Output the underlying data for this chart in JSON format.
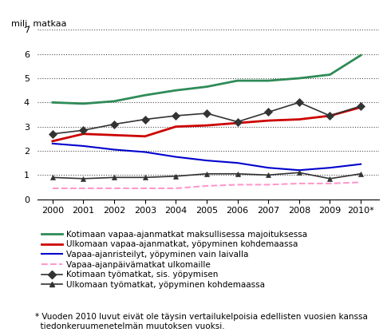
{
  "years": [
    2000,
    2001,
    2002,
    2003,
    2004,
    2005,
    2006,
    2007,
    2008,
    2009,
    2010
  ],
  "year_labels": [
    "2000",
    "2001",
    "2002",
    "2003",
    "2004",
    "2005",
    "2006",
    "2007",
    "2008",
    "2009",
    "2010*"
  ],
  "series": [
    {
      "key": "kotimaa_vapaa",
      "label": "Kotimaan vapaa-ajanmatkat maksullisessa majoituksessa",
      "color": "#2e8b57",
      "linewidth": 2.0,
      "linestyle": "-",
      "marker": null,
      "markersize": null,
      "values": [
        4.0,
        3.95,
        4.05,
        4.3,
        4.5,
        4.65,
        4.9,
        4.9,
        5.0,
        5.15,
        5.95
      ]
    },
    {
      "key": "ulkomaa_vapaa",
      "label": "Ulkomaan vapaa-ajanmatkat, yöpyminen kohdemaassa",
      "color": "#cc0000",
      "linewidth": 2.0,
      "linestyle": "-",
      "marker": null,
      "markersize": null,
      "values": [
        2.4,
        2.7,
        2.65,
        2.6,
        3.0,
        3.05,
        3.15,
        3.25,
        3.3,
        3.45,
        3.8
      ]
    },
    {
      "key": "risteilyt",
      "label": "Vapaa-ajanristeilyt, yöpyminen vain laivalla",
      "color": "#0000cc",
      "linewidth": 1.5,
      "linestyle": "-",
      "marker": null,
      "markersize": null,
      "values": [
        2.3,
        2.2,
        2.05,
        1.95,
        1.75,
        1.6,
        1.5,
        1.3,
        1.2,
        1.3,
        1.45
      ]
    },
    {
      "key": "paivamatkat",
      "label": "Vapaa-ajanpäivämatkat ulkomaille",
      "color": "#ff99cc",
      "linewidth": 1.5,
      "linestyle": "--",
      "marker": null,
      "markersize": null,
      "values": [
        0.45,
        0.45,
        0.45,
        0.45,
        0.45,
        0.55,
        0.6,
        0.6,
        0.65,
        0.65,
        0.7
      ]
    },
    {
      "key": "kotimaa_tyo",
      "label": "Kotimaan työmatkat, sis. yöpymisen",
      "color": "#333333",
      "linewidth": 1.2,
      "linestyle": "-",
      "marker": "D",
      "markersize": 5,
      "values": [
        2.7,
        2.85,
        3.1,
        3.3,
        3.45,
        3.55,
        3.2,
        3.6,
        4.0,
        3.45,
        3.85
      ]
    },
    {
      "key": "ulkomaa_tyo",
      "label": "Ulkomaan työmatkat, yöpyminen kohdemaassa",
      "color": "#333333",
      "linewidth": 1.2,
      "linestyle": "-",
      "marker": "^",
      "markersize": 5,
      "values": [
        0.9,
        0.85,
        0.9,
        0.9,
        0.95,
        1.05,
        1.05,
        1.0,
        1.1,
        0.85,
        1.05
      ]
    }
  ],
  "ylabel": "milj. matkaa",
  "ylim": [
    0,
    7
  ],
  "yticks": [
    0,
    1,
    2,
    3,
    4,
    5,
    6,
    7
  ],
  "xlim": [
    1999.5,
    2010.6
  ],
  "footnote_line1": "* Vuoden 2010 luvut eivät ole täysin vertailukelpoisia edellisten vuosien kanssa",
  "footnote_line2": "  tiedonkeruumenetelmän muutoksen vuoksi.",
  "background_color": "#ffffff"
}
